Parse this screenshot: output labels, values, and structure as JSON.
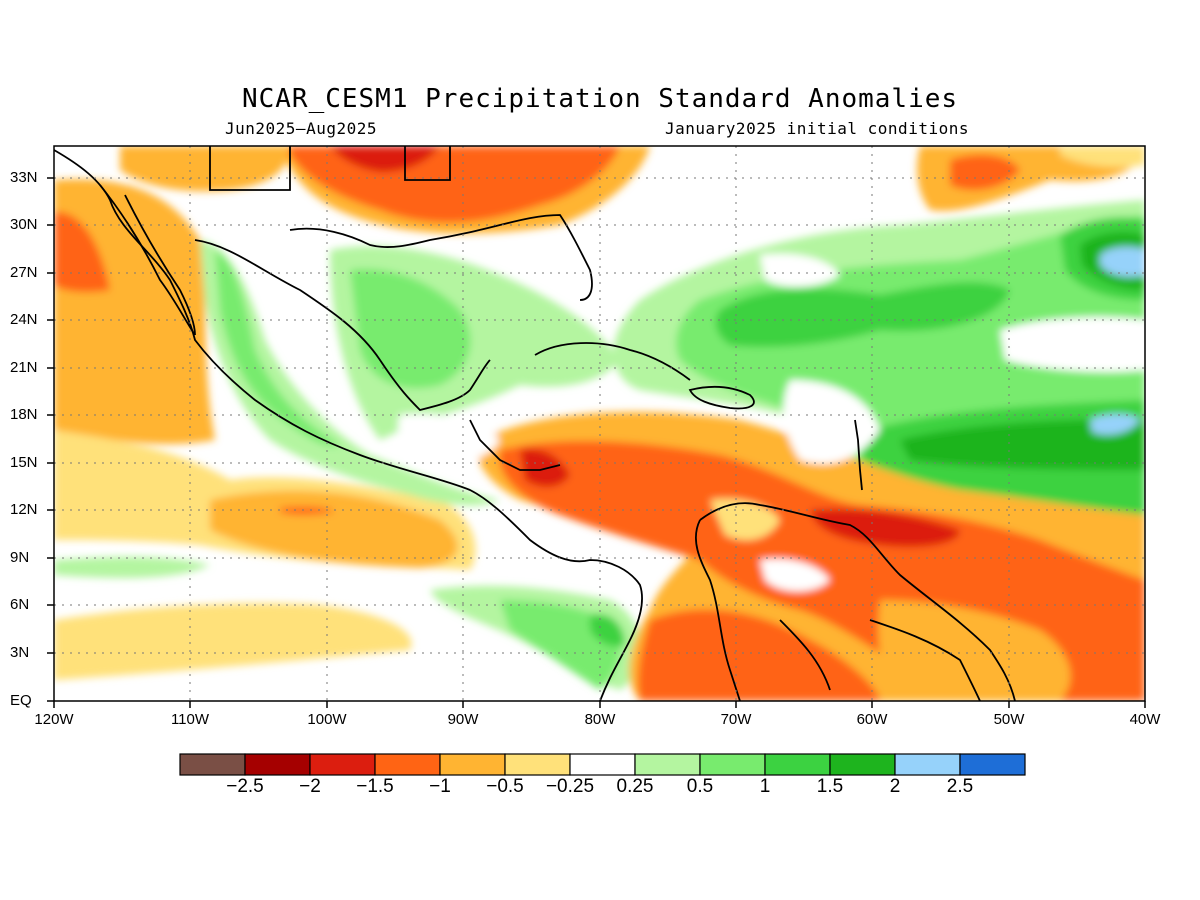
{
  "title": "NCAR_CESM1 Precipitation Standard Anomalies",
  "subtitle_left": "Jun2025–Aug2025",
  "subtitle_right": "January2025 initial conditions",
  "lat_labels": [
    "33N",
    "30N",
    "27N",
    "24N",
    "21N",
    "18N",
    "15N",
    "12N",
    "9N",
    "6N",
    "3N",
    "EQ"
  ],
  "lon_labels": [
    "120W",
    "110W",
    "100W",
    "90W",
    "80W",
    "70W",
    "60W",
    "50W",
    "40W"
  ],
  "colorbar": {
    "colors": [
      "#7a4f45",
      "#a50000",
      "#dc1e0f",
      "#ff6414",
      "#ffb432",
      "#ffe17a",
      "#ffffff",
      "#b4f5a0",
      "#78eb6e",
      "#3cd241",
      "#1eb41e",
      "#96d2fa",
      "#1e6ed7"
    ],
    "labels": [
      "−2.5",
      "−2",
      "−1.5",
      "−1",
      "−0.5",
      "−0.25",
      "0.25",
      "0.5",
      "1",
      "1.5",
      "2",
      "2.5"
    ]
  },
  "map": {
    "lon_range": [
      -120,
      -40
    ],
    "lat_range": [
      0,
      35
    ],
    "grid": "dotted"
  }
}
